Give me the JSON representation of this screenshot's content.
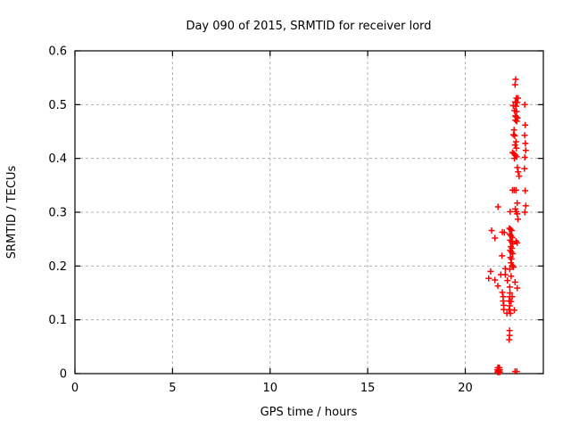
{
  "figure": {
    "background": "#ffffff"
  },
  "chart_data": {
    "type": "scatter",
    "title": "Day 090 of 2015, SRMTID for receiver lord",
    "xlabel": "GPS time / hours",
    "ylabel": "SRMTID / TECUs",
    "xlim": [
      0,
      24
    ],
    "ylim": [
      0,
      0.6
    ],
    "xticks": [
      0,
      5,
      10,
      15,
      20
    ],
    "xtick_labels": [
      "0",
      "5",
      "10",
      "15",
      "20"
    ],
    "yticks": [
      0,
      0.1,
      0.2,
      0.3,
      0.4,
      0.5,
      0.6
    ],
    "ytick_labels": [
      "0",
      "0.1",
      "0.2",
      "0.3",
      "0.4",
      "0.5",
      "0.6"
    ],
    "grid": true,
    "grid_style": "dashed",
    "legend": "none",
    "marker": "plus",
    "marker_color": "#ff0000",
    "axis_color": "#000000",
    "grid_color": "#b0b0b0",
    "series": [
      {
        "name": "SRMTID",
        "points": [
          [
            22.58,
            0.547
          ],
          [
            22.55,
            0.537
          ],
          [
            22.62,
            0.512
          ],
          [
            22.7,
            0.512
          ],
          [
            22.56,
            0.505
          ],
          [
            22.66,
            0.504
          ],
          [
            23.05,
            0.5
          ],
          [
            22.46,
            0.498
          ],
          [
            22.6,
            0.497
          ],
          [
            22.52,
            0.489
          ],
          [
            22.63,
            0.487
          ],
          [
            22.56,
            0.479
          ],
          [
            22.62,
            0.477
          ],
          [
            22.68,
            0.475
          ],
          [
            22.57,
            0.471
          ],
          [
            22.64,
            0.469
          ],
          [
            23.07,
            0.462
          ],
          [
            22.5,
            0.453
          ],
          [
            23.04,
            0.443
          ],
          [
            22.47,
            0.444
          ],
          [
            22.53,
            0.442
          ],
          [
            22.6,
            0.431
          ],
          [
            23.08,
            0.428
          ],
          [
            22.55,
            0.425
          ],
          [
            22.62,
            0.419
          ],
          [
            23.1,
            0.415
          ],
          [
            22.42,
            0.411
          ],
          [
            22.49,
            0.409
          ],
          [
            22.56,
            0.406
          ],
          [
            23.05,
            0.402
          ],
          [
            22.63,
            0.403
          ],
          [
            22.52,
            0.4
          ],
          [
            23.03,
            0.381
          ],
          [
            22.67,
            0.383
          ],
          [
            22.71,
            0.375
          ],
          [
            22.76,
            0.367
          ],
          [
            22.42,
            0.341
          ],
          [
            22.51,
            0.341
          ],
          [
            22.6,
            0.341
          ],
          [
            23.07,
            0.34
          ],
          [
            22.66,
            0.317
          ],
          [
            23.1,
            0.312
          ],
          [
            21.68,
            0.31
          ],
          [
            22.56,
            0.306
          ],
          [
            22.3,
            0.301
          ],
          [
            22.61,
            0.301
          ],
          [
            23.05,
            0.3
          ],
          [
            22.66,
            0.297
          ],
          [
            22.7,
            0.287
          ],
          [
            22.26,
            0.27
          ],
          [
            22.32,
            0.268
          ],
          [
            22.38,
            0.266
          ],
          [
            21.35,
            0.266
          ],
          [
            21.9,
            0.263
          ],
          [
            22.0,
            0.262
          ],
          [
            22.28,
            0.259
          ],
          [
            22.34,
            0.256
          ],
          [
            22.41,
            0.253
          ],
          [
            21.52,
            0.252
          ],
          [
            22.3,
            0.248
          ],
          [
            22.6,
            0.246
          ],
          [
            22.37,
            0.245
          ],
          [
            22.66,
            0.243
          ],
          [
            22.43,
            0.241
          ],
          [
            22.33,
            0.236
          ],
          [
            22.39,
            0.233
          ],
          [
            22.3,
            0.229
          ],
          [
            22.36,
            0.226
          ],
          [
            22.43,
            0.223
          ],
          [
            21.88,
            0.219
          ],
          [
            22.31,
            0.216
          ],
          [
            22.37,
            0.213
          ],
          [
            22.34,
            0.206
          ],
          [
            22.41,
            0.201
          ],
          [
            22.47,
            0.198
          ],
          [
            22.05,
            0.195
          ],
          [
            22.28,
            0.194
          ],
          [
            21.3,
            0.19
          ],
          [
            21.82,
            0.184
          ],
          [
            22.05,
            0.184
          ],
          [
            22.35,
            0.181
          ],
          [
            21.2,
            0.177
          ],
          [
            21.52,
            0.174
          ],
          [
            22.16,
            0.173
          ],
          [
            22.55,
            0.17
          ],
          [
            21.67,
            0.163
          ],
          [
            22.28,
            0.161
          ],
          [
            22.66,
            0.159
          ],
          [
            21.9,
            0.151
          ],
          [
            22.29,
            0.15
          ],
          [
            21.94,
            0.143
          ],
          [
            22.28,
            0.143
          ],
          [
            22.4,
            0.143
          ],
          [
            21.94,
            0.135
          ],
          [
            22.25,
            0.135
          ],
          [
            22.35,
            0.134
          ],
          [
            21.97,
            0.127
          ],
          [
            22.28,
            0.126
          ],
          [
            21.97,
            0.119
          ],
          [
            22.25,
            0.119
          ],
          [
            22.51,
            0.118
          ],
          [
            22.13,
            0.112
          ],
          [
            22.31,
            0.112
          ],
          [
            22.27,
            0.08
          ],
          [
            22.27,
            0.071
          ],
          [
            22.25,
            0.063
          ],
          [
            21.65,
            0.003
          ],
          [
            21.69,
            0.003
          ],
          [
            21.73,
            0.003
          ],
          [
            21.77,
            0.003
          ],
          [
            21.65,
            0.007
          ],
          [
            21.69,
            0.007
          ],
          [
            21.73,
            0.007
          ],
          [
            21.77,
            0.007
          ],
          [
            21.67,
            0.011
          ],
          [
            21.71,
            0.011
          ],
          [
            21.75,
            0.011
          ],
          [
            21.7,
            0.005
          ],
          [
            22.55,
            0.004
          ],
          [
            22.64,
            0.004
          ]
        ]
      }
    ]
  }
}
